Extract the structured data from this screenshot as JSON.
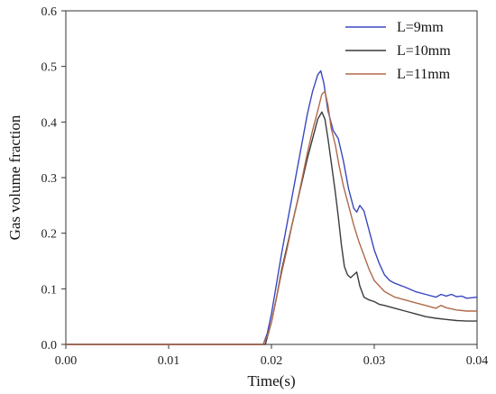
{
  "chart_data": {
    "type": "line",
    "title": "",
    "xlabel": "Time(s)",
    "ylabel": "Gas volume fraction",
    "xlim": [
      0,
      0.04
    ],
    "ylim": [
      0,
      0.6
    ],
    "xticks": [
      0.0,
      0.01,
      0.02,
      0.03,
      0.04
    ],
    "xtick_labels": [
      "0.00",
      "0.01",
      "0.02",
      "0.03",
      "0.04"
    ],
    "yticks": [
      0.0,
      0.1,
      0.2,
      0.3,
      0.4,
      0.5,
      0.6
    ],
    "ytick_labels": [
      "0.0",
      "0.1",
      "0.2",
      "0.3",
      "0.4",
      "0.5",
      "0.6"
    ],
    "grid": false,
    "legend_position": "top-right",
    "series": [
      {
        "name": "L=9mm",
        "color": "#3a48c0",
        "points": [
          [
            0,
            0
          ],
          [
            0.0192,
            0
          ],
          [
            0.0196,
            0.02
          ],
          [
            0.02,
            0.055
          ],
          [
            0.0205,
            0.11
          ],
          [
            0.021,
            0.165
          ],
          [
            0.0215,
            0.215
          ],
          [
            0.022,
            0.265
          ],
          [
            0.0225,
            0.315
          ],
          [
            0.023,
            0.365
          ],
          [
            0.0235,
            0.415
          ],
          [
            0.024,
            0.455
          ],
          [
            0.0245,
            0.485
          ],
          [
            0.0248,
            0.492
          ],
          [
            0.0251,
            0.47
          ],
          [
            0.0255,
            0.42
          ],
          [
            0.026,
            0.385
          ],
          [
            0.0265,
            0.37
          ],
          [
            0.027,
            0.33
          ],
          [
            0.0275,
            0.28
          ],
          [
            0.028,
            0.245
          ],
          [
            0.0283,
            0.238
          ],
          [
            0.0286,
            0.25
          ],
          [
            0.029,
            0.24
          ],
          [
            0.0295,
            0.205
          ],
          [
            0.03,
            0.17
          ],
          [
            0.0305,
            0.145
          ],
          [
            0.031,
            0.125
          ],
          [
            0.0315,
            0.115
          ],
          [
            0.032,
            0.11
          ],
          [
            0.033,
            0.103
          ],
          [
            0.034,
            0.095
          ],
          [
            0.035,
            0.09
          ],
          [
            0.036,
            0.085
          ],
          [
            0.0365,
            0.09
          ],
          [
            0.037,
            0.087
          ],
          [
            0.0375,
            0.09
          ],
          [
            0.038,
            0.086
          ],
          [
            0.0385,
            0.087
          ],
          [
            0.039,
            0.083
          ],
          [
            0.04,
            0.085
          ]
        ]
      },
      {
        "name": "L=10mm",
        "color": "#3c3c3c",
        "points": [
          [
            0,
            0
          ],
          [
            0.0194,
            0
          ],
          [
            0.0197,
            0.02
          ],
          [
            0.02,
            0.04
          ],
          [
            0.0205,
            0.085
          ],
          [
            0.021,
            0.135
          ],
          [
            0.0215,
            0.175
          ],
          [
            0.022,
            0.215
          ],
          [
            0.0225,
            0.255
          ],
          [
            0.023,
            0.295
          ],
          [
            0.0235,
            0.335
          ],
          [
            0.024,
            0.37
          ],
          [
            0.0245,
            0.405
          ],
          [
            0.0249,
            0.418
          ],
          [
            0.0252,
            0.405
          ],
          [
            0.0255,
            0.37
          ],
          [
            0.0258,
            0.33
          ],
          [
            0.0262,
            0.275
          ],
          [
            0.0265,
            0.23
          ],
          [
            0.0268,
            0.18
          ],
          [
            0.0271,
            0.14
          ],
          [
            0.0274,
            0.125
          ],
          [
            0.0277,
            0.12
          ],
          [
            0.028,
            0.125
          ],
          [
            0.0283,
            0.13
          ],
          [
            0.0286,
            0.105
          ],
          [
            0.029,
            0.085
          ],
          [
            0.0295,
            0.08
          ],
          [
            0.03,
            0.077
          ],
          [
            0.0305,
            0.072
          ],
          [
            0.031,
            0.07
          ],
          [
            0.032,
            0.065
          ],
          [
            0.033,
            0.06
          ],
          [
            0.034,
            0.055
          ],
          [
            0.035,
            0.05
          ],
          [
            0.036,
            0.047
          ],
          [
            0.037,
            0.045
          ],
          [
            0.038,
            0.043
          ],
          [
            0.039,
            0.042
          ],
          [
            0.04,
            0.042
          ]
        ]
      },
      {
        "name": "L=11mm",
        "color": "#b06a48",
        "points": [
          [
            0,
            0
          ],
          [
            0.0192,
            0
          ],
          [
            0.0196,
            0.015
          ],
          [
            0.02,
            0.04
          ],
          [
            0.0205,
            0.085
          ],
          [
            0.021,
            0.13
          ],
          [
            0.0215,
            0.17
          ],
          [
            0.022,
            0.215
          ],
          [
            0.0225,
            0.255
          ],
          [
            0.023,
            0.3
          ],
          [
            0.0235,
            0.345
          ],
          [
            0.024,
            0.385
          ],
          [
            0.0245,
            0.42
          ],
          [
            0.0249,
            0.45
          ],
          [
            0.0252,
            0.455
          ],
          [
            0.0255,
            0.43
          ],
          [
            0.0258,
            0.39
          ],
          [
            0.0262,
            0.36
          ],
          [
            0.0266,
            0.32
          ],
          [
            0.027,
            0.285
          ],
          [
            0.0275,
            0.25
          ],
          [
            0.028,
            0.215
          ],
          [
            0.0285,
            0.185
          ],
          [
            0.029,
            0.16
          ],
          [
            0.0295,
            0.135
          ],
          [
            0.03,
            0.115
          ],
          [
            0.031,
            0.095
          ],
          [
            0.032,
            0.085
          ],
          [
            0.033,
            0.08
          ],
          [
            0.034,
            0.075
          ],
          [
            0.035,
            0.07
          ],
          [
            0.036,
            0.065
          ],
          [
            0.0365,
            0.07
          ],
          [
            0.037,
            0.066
          ],
          [
            0.038,
            0.062
          ],
          [
            0.039,
            0.06
          ],
          [
            0.04,
            0.06
          ]
        ]
      }
    ]
  }
}
